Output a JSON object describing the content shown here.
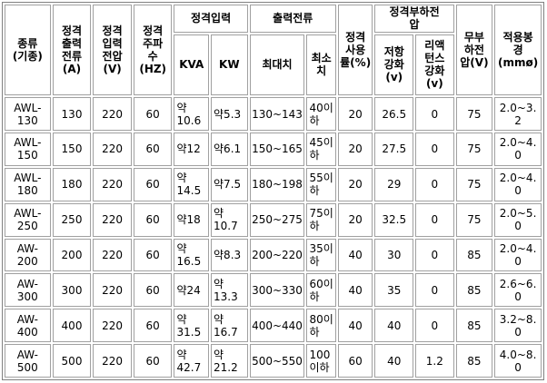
{
  "headers": {
    "type": [
      "종류",
      "(기종)"
    ],
    "rated_output_current": [
      "정격",
      "출력",
      "전류",
      "(A)"
    ],
    "rated_input_voltage": [
      "정격",
      "입력",
      "전압",
      "(V)"
    ],
    "rated_frequency": [
      "정격",
      "주파",
      "수",
      "(HZ)"
    ],
    "rated_input": "정격입력",
    "kva": "KVA",
    "kw": "KW",
    "output_current": "출력전류",
    "max": "최대치",
    "min": [
      "최소",
      "치"
    ],
    "duty_cycle": [
      "정격",
      "사용",
      "률(%)"
    ],
    "rated_load_voltage": [
      "정격부하전",
      "압"
    ],
    "resistance_drop": [
      "저항",
      "강화",
      "(v)"
    ],
    "reactance_drop": [
      "리액",
      "턴스",
      "강화",
      "(v)"
    ],
    "no_load_voltage": [
      "무부",
      "하전",
      "압(V)"
    ],
    "rod_size": [
      "적용봉",
      "경",
      "(mmø)"
    ]
  },
  "rows": [
    {
      "model": [
        "AWL-",
        "130"
      ],
      "current": "130",
      "voltage": "220",
      "freq": "60",
      "kva": [
        "약",
        "10.6"
      ],
      "kw": [
        "약5.3"
      ],
      "max": "130~143",
      "min": [
        "40이",
        "하"
      ],
      "duty": "20",
      "res": "26.5",
      "react": "0",
      "noload": "75",
      "rod": "2.0~3.2"
    },
    {
      "model": [
        "AWL-",
        "150"
      ],
      "current": "150",
      "voltage": "220",
      "freq": "60",
      "kva": [
        "약12"
      ],
      "kw": [
        "약6.1"
      ],
      "max": "150~165",
      "min": [
        "45이",
        "하"
      ],
      "duty": "20",
      "res": "27.5",
      "react": "0",
      "noload": "75",
      "rod": "2.0~4.0"
    },
    {
      "model": [
        "AWL-",
        "180"
      ],
      "current": "180",
      "voltage": "220",
      "freq": "60",
      "kva": [
        "약",
        "14.5"
      ],
      "kw": [
        "약7.5"
      ],
      "max": "180~198",
      "min": [
        "55이",
        "하"
      ],
      "duty": "20",
      "res": "29",
      "react": "0",
      "noload": "75",
      "rod": "2.0~4.0"
    },
    {
      "model": [
        "AWL-",
        "250"
      ],
      "current": "250",
      "voltage": "220",
      "freq": "60",
      "kva": [
        "약18"
      ],
      "kw": [
        "약",
        "10.7"
      ],
      "max": "250~275",
      "min": [
        "75이",
        "하"
      ],
      "duty": "20",
      "res": "32.5",
      "react": "0",
      "noload": "75",
      "rod": "2.0~5.0"
    },
    {
      "model": [
        "AW-",
        "200"
      ],
      "current": "200",
      "voltage": "220",
      "freq": "60",
      "kva": [
        "약",
        "16.5"
      ],
      "kw": [
        "약8.3"
      ],
      "max": "200~220",
      "min": [
        "35이",
        "하"
      ],
      "duty": "40",
      "res": "30",
      "react": "0",
      "noload": "85",
      "rod": "2.0~4.0"
    },
    {
      "model": [
        "AW-",
        "300"
      ],
      "current": "300",
      "voltage": "220",
      "freq": "60",
      "kva": [
        "약24"
      ],
      "kw": [
        "약",
        "13.3"
      ],
      "max": "300~330",
      "min": [
        "60이",
        "하"
      ],
      "duty": "40",
      "res": "35",
      "react": "0",
      "noload": "85",
      "rod": "2.6~6.0"
    },
    {
      "model": [
        "AW-",
        "400"
      ],
      "current": "400",
      "voltage": "220",
      "freq": "60",
      "kva": [
        "약",
        "31.5"
      ],
      "kw": [
        "약",
        "16.7"
      ],
      "max": "400~440",
      "min": [
        "80이",
        "하"
      ],
      "duty": "40",
      "res": "40",
      "react": "0",
      "noload": "85",
      "rod": "3.2~8.0"
    },
    {
      "model": [
        "AW-",
        "500"
      ],
      "current": "500",
      "voltage": "220",
      "freq": "60",
      "kva": [
        "약",
        "42.7"
      ],
      "kw": [
        "약",
        "21.2"
      ],
      "max": "500~550",
      "min": [
        "100",
        "이하"
      ],
      "duty": "60",
      "res": "40",
      "react": "1.2",
      "noload": "85",
      "rod": "4.0~8.0"
    }
  ]
}
